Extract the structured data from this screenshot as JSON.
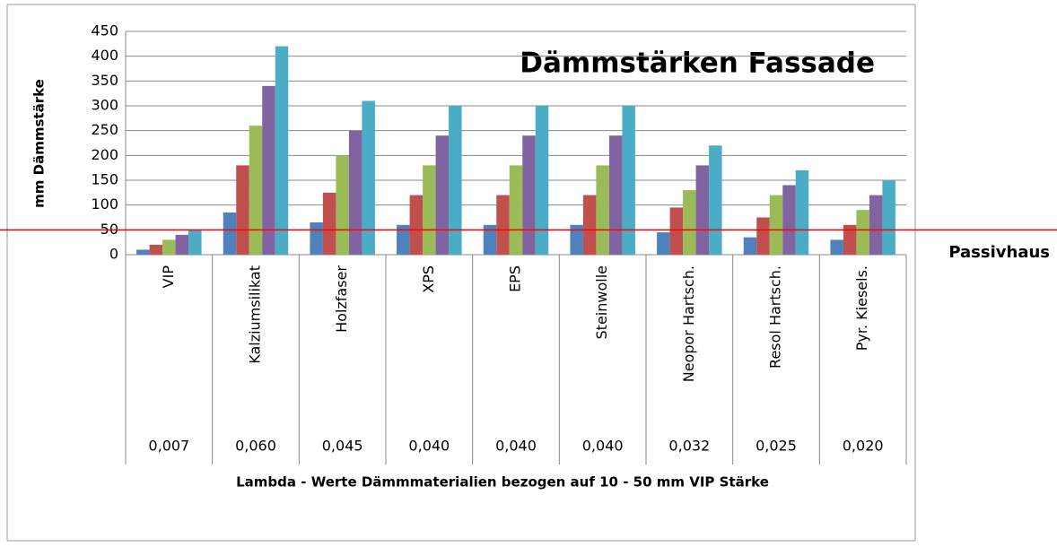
{
  "chart_data": {
    "type": "bar",
    "title": "Dämmstärken Fassade",
    "y_label": "mm Dämmstärke",
    "x_label": "Lambda - Werte Dämmmaterialien bezogen auf 10 - 50 mm VIP Stärke",
    "categories": [
      "VIP",
      "Kalziumsilikat",
      "Holzfaser",
      "XPS",
      "EPS",
      "Steinwolle",
      "Neopor Hartsch.",
      "Resol Hartsch.",
      "Pyr. Kiesels."
    ],
    "category_values": [
      "0,007",
      "0,060",
      "0,045",
      "0,040",
      "0,040",
      "0,040",
      "0,032",
      "0,025",
      "0,020"
    ],
    "series": [
      {
        "color": "#4f81bd",
        "values": [
          10,
          85,
          65,
          60,
          60,
          60,
          45,
          35,
          30
        ]
      },
      {
        "color": "#c0504d",
        "values": [
          20,
          180,
          125,
          120,
          120,
          120,
          95,
          75,
          60
        ]
      },
      {
        "color": "#9bbb59",
        "values": [
          30,
          260,
          200,
          180,
          180,
          180,
          130,
          120,
          90
        ]
      },
      {
        "color": "#8064a2",
        "values": [
          40,
          340,
          250,
          240,
          240,
          240,
          180,
          140,
          120
        ]
      },
      {
        "color": "#4bacc6",
        "values": [
          50,
          420,
          310,
          300,
          300,
          300,
          220,
          170,
          150
        ]
      }
    ],
    "ylim": [
      0,
      450
    ],
    "yticks": [
      0,
      50,
      100,
      150,
      200,
      250,
      300,
      350,
      400,
      450
    ],
    "grid": true,
    "reference_line": {
      "value": 50,
      "label": "Passivhaus",
      "color": "#ff0000"
    }
  }
}
